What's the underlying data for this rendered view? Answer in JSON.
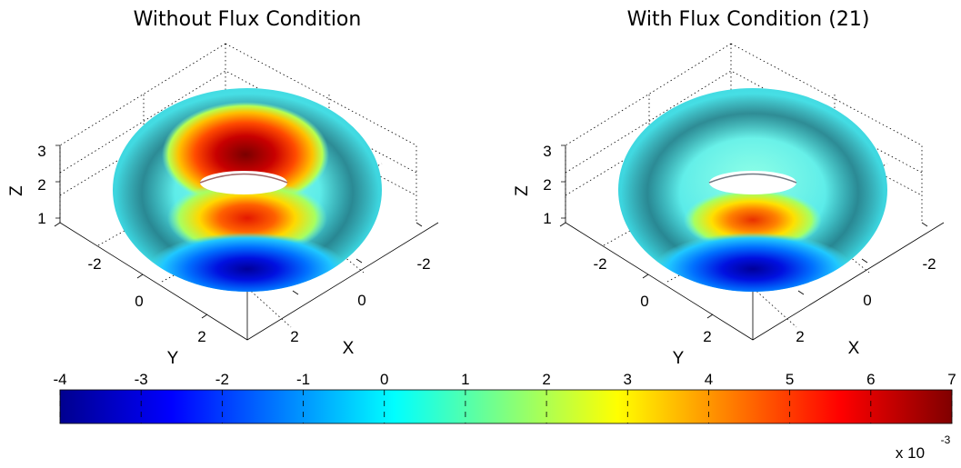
{
  "chart_data": {
    "type": "surface",
    "colormap": "jet",
    "colorbar": {
      "ticks": [
        "-4",
        "-3",
        "-2",
        "-1",
        "0",
        "1",
        "2",
        "3",
        "4",
        "5",
        "6",
        "7"
      ],
      "range": [
        -4,
        7
      ],
      "scale_label": "x 10",
      "scale_exponent": "-3"
    },
    "panels": [
      {
        "title": "Without Flux Condition",
        "xlabel": "X",
        "ylabel": "Y",
        "zlabel": "Z",
        "x_ticks": [
          "-2",
          "0",
          "2"
        ],
        "y_ticks": [
          "-2",
          "0",
          "2"
        ],
        "z_ticks": [
          "1",
          "2",
          "3"
        ],
        "zlim": [
          1,
          3
        ],
        "grid": "dotted",
        "field_extremes": [
          {
            "location": "inner top rim",
            "value": 7
          },
          {
            "location": "front inner",
            "value": 6
          },
          {
            "location": "front outer",
            "value": -4
          }
        ]
      },
      {
        "title": "With Flux Condition (21)",
        "xlabel": "X",
        "ylabel": "Y",
        "zlabel": "Z",
        "x_ticks": [
          "-2",
          "0",
          "2"
        ],
        "y_ticks": [
          "-2",
          "0",
          "2"
        ],
        "z_ticks": [
          "1",
          "2",
          "3"
        ],
        "zlim": [
          1,
          3
        ],
        "grid": "dotted",
        "field_extremes": [
          {
            "location": "inner top rim",
            "value": 0
          },
          {
            "location": "front inner",
            "value": 5.5
          },
          {
            "location": "front outer",
            "value": -4
          }
        ]
      }
    ]
  }
}
